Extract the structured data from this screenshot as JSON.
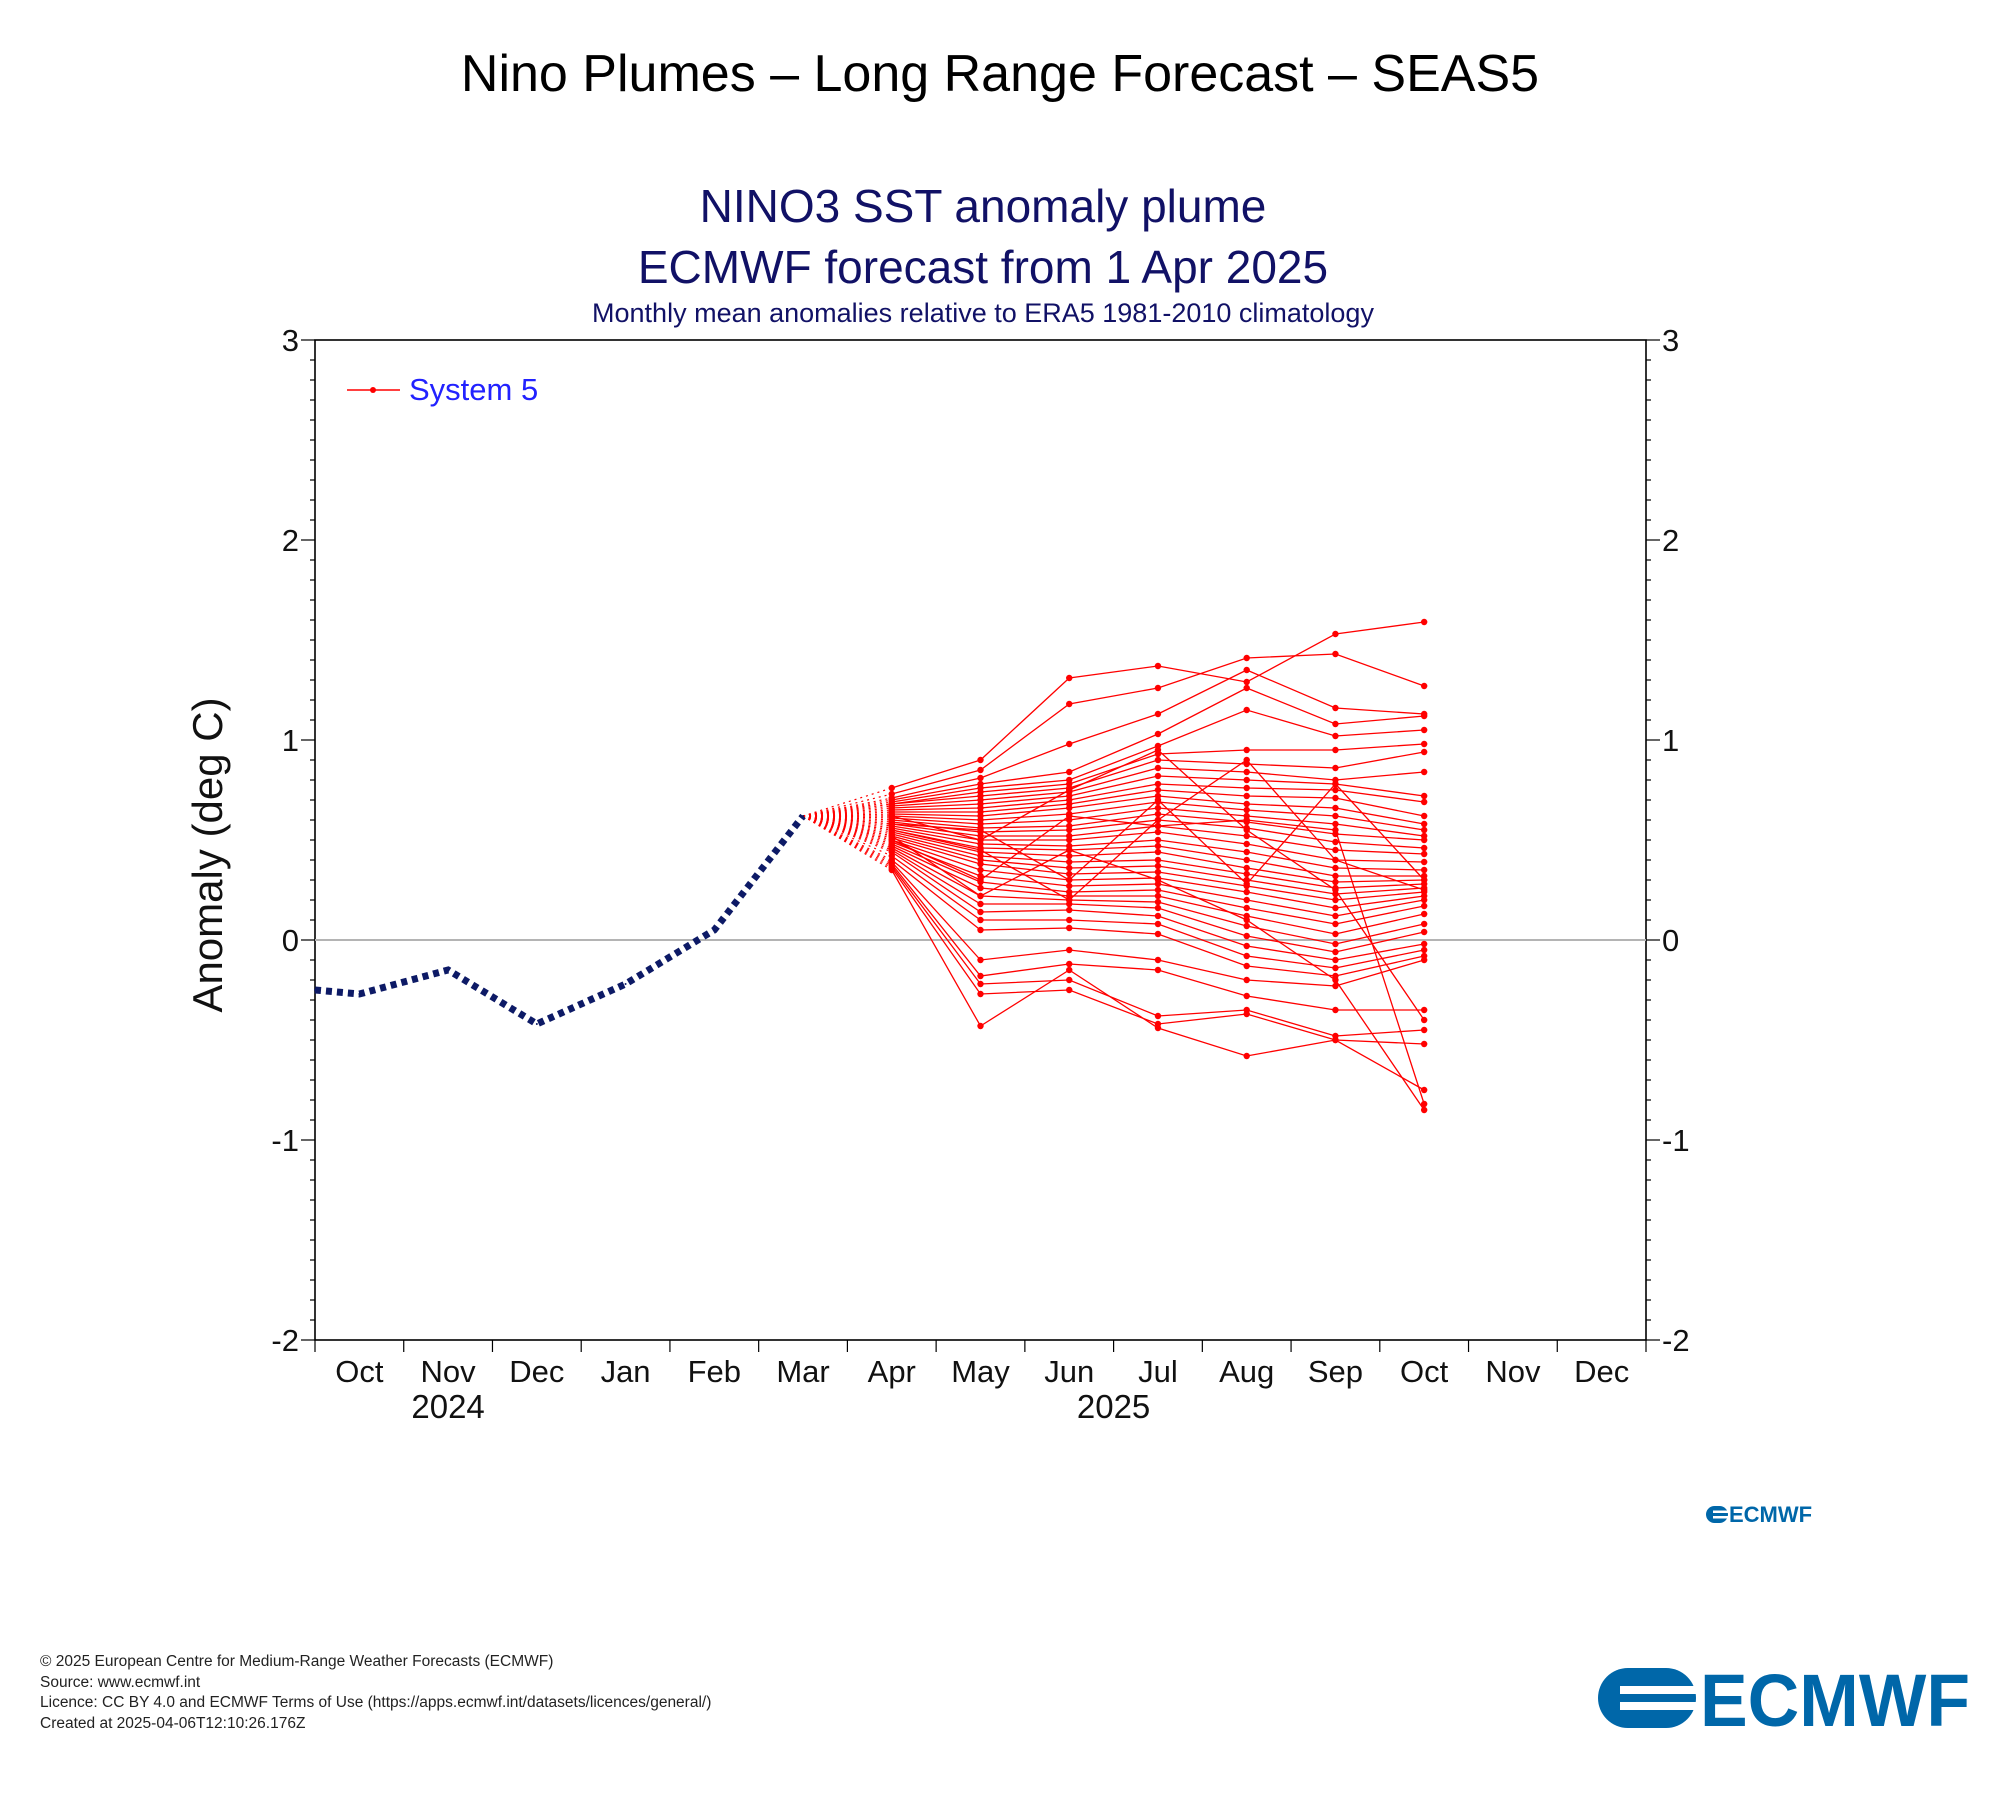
{
  "page": {
    "title": "Nino Plumes – Long Range Forecast – SEAS5",
    "footer": {
      "copyright": "© 2025 European Centre for Medium-Range Weather Forecasts (ECMWF)",
      "source": "Source: www.ecmwf.int",
      "licence": "Licence: CC BY 4.0 and ECMWF Terms of Use (https://apps.ecmwf.int/datasets/licences/general/)",
      "created": "Created at 2025-04-06T12:10:26.176Z"
    },
    "logo_text": "ECMWF",
    "small_logo_text": "ECMWF"
  },
  "colors": {
    "forecast": "#ff0000",
    "observed": "#0d1a66",
    "title": "#111166",
    "legend_text": "#2222ff",
    "logo": "#0067a9",
    "zero_line": "#b4b4b4"
  },
  "chart_data": {
    "type": "line",
    "title": "NINO3 SST anomaly plume",
    "title2": "ECMWF forecast from 1 Apr 2025",
    "subtitle": "Monthly mean anomalies relative to ERA5 1981-2010 climatology",
    "ylabel": "Anomaly (deg C)",
    "ylim": [
      -2,
      3
    ],
    "yticks": [
      -2,
      -1,
      0,
      1,
      2,
      3
    ],
    "ytick_labels": [
      "-2",
      "-1",
      "0",
      "1",
      "2",
      "3"
    ],
    "x_labels": [
      "Oct",
      "Nov",
      "Dec",
      "Jan",
      "Feb",
      "Mar",
      "Apr",
      "May",
      "Jun",
      "Jul",
      "Aug",
      "Sep",
      "Oct",
      "Nov",
      "Dec"
    ],
    "year_labels": [
      {
        "text": "2024",
        "index": 1
      },
      {
        "text": "2025",
        "index": 8.5
      }
    ],
    "legend": {
      "label": "System 5",
      "position": "top-left"
    },
    "grid": false,
    "zero_line": true,
    "observed": {
      "name": "",
      "points": [
        {
          "x": -0.5,
          "y": -0.25
        },
        {
          "x": 0,
          "y": -0.27
        },
        {
          "x": 1,
          "y": -0.15
        },
        {
          "x": 2,
          "y": -0.42
        },
        {
          "x": 3,
          "y": -0.22
        },
        {
          "x": 4,
          "y": 0.05
        },
        {
          "x": 5,
          "y": 0.62
        }
      ]
    },
    "forecast_start": {
      "x": 5,
      "y": 0.62
    },
    "forecast_x": [
      6,
      7,
      8,
      9,
      10,
      11,
      12
    ],
    "forecast_members": [
      [
        0.76,
        0.9,
        1.31,
        1.37,
        1.29,
        1.53,
        1.59
      ],
      [
        0.73,
        0.85,
        1.18,
        1.26,
        1.41,
        1.43,
        1.27
      ],
      [
        0.71,
        0.81,
        0.98,
        1.13,
        1.35,
        1.16,
        1.13
      ],
      [
        0.7,
        0.78,
        0.84,
        1.03,
        1.26,
        1.08,
        1.12
      ],
      [
        0.69,
        0.76,
        0.8,
        0.97,
        1.15,
        1.02,
        1.05
      ],
      [
        0.68,
        0.74,
        0.78,
        0.93,
        0.95,
        0.95,
        0.98
      ],
      [
        0.68,
        0.72,
        0.76,
        0.9,
        0.88,
        0.86,
        0.94
      ],
      [
        0.67,
        0.7,
        0.74,
        0.86,
        0.84,
        0.8,
        0.84
      ],
      [
        0.66,
        0.68,
        0.72,
        0.82,
        0.8,
        0.78,
        0.72
      ],
      [
        0.65,
        0.66,
        0.7,
        0.78,
        0.76,
        0.75,
        0.69
      ],
      [
        0.64,
        0.64,
        0.68,
        0.75,
        0.72,
        0.71,
        0.62
      ],
      [
        0.63,
        0.62,
        0.66,
        0.72,
        0.68,
        0.66,
        0.58
      ],
      [
        0.62,
        0.6,
        0.63,
        0.69,
        0.65,
        0.62,
        0.55
      ],
      [
        0.61,
        0.58,
        0.6,
        0.66,
        0.62,
        0.58,
        0.52
      ],
      [
        0.6,
        0.56,
        0.57,
        0.63,
        0.59,
        0.53,
        0.5
      ],
      [
        0.59,
        0.54,
        0.55,
        0.6,
        0.56,
        0.49,
        0.46
      ],
      [
        0.58,
        0.52,
        0.52,
        0.57,
        0.52,
        0.45,
        0.43
      ],
      [
        0.57,
        0.5,
        0.5,
        0.54,
        0.48,
        0.4,
        0.39
      ],
      [
        0.56,
        0.48,
        0.47,
        0.5,
        0.44,
        0.36,
        0.35
      ],
      [
        0.55,
        0.46,
        0.45,
        0.47,
        0.4,
        0.32,
        0.32
      ],
      [
        0.54,
        0.44,
        0.42,
        0.44,
        0.36,
        0.29,
        0.3
      ],
      [
        0.53,
        0.42,
        0.39,
        0.4,
        0.33,
        0.26,
        0.28
      ],
      [
        0.52,
        0.4,
        0.36,
        0.37,
        0.3,
        0.23,
        0.26
      ],
      [
        0.51,
        0.38,
        0.33,
        0.34,
        0.27,
        0.2,
        0.24
      ],
      [
        0.5,
        0.35,
        0.3,
        0.31,
        0.24,
        0.16,
        0.22
      ],
      [
        0.49,
        0.32,
        0.27,
        0.28,
        0.2,
        0.12,
        0.2
      ],
      [
        0.48,
        0.29,
        0.24,
        0.25,
        0.16,
        0.08,
        0.17
      ],
      [
        0.47,
        0.26,
        0.22,
        0.22,
        0.12,
        0.03,
        0.13
      ],
      [
        0.46,
        0.22,
        0.2,
        0.19,
        0.07,
        -0.02,
        0.08
      ],
      [
        0.45,
        0.18,
        0.18,
        0.16,
        0.02,
        -0.06,
        0.04
      ],
      [
        0.44,
        0.14,
        0.15,
        0.12,
        -0.03,
        -0.1,
        -0.02
      ],
      [
        0.42,
        0.1,
        0.1,
        0.08,
        -0.08,
        -0.14,
        -0.05
      ],
      [
        0.4,
        0.05,
        0.06,
        0.03,
        -0.13,
        -0.18,
        -0.08
      ],
      [
        0.39,
        -0.1,
        -0.05,
        -0.1,
        -0.2,
        -0.23,
        -0.1
      ],
      [
        0.38,
        -0.18,
        -0.12,
        -0.15,
        -0.28,
        -0.35,
        -0.35
      ],
      [
        0.37,
        -0.22,
        -0.2,
        -0.38,
        -0.35,
        -0.48,
        -0.45
      ],
      [
        0.36,
        -0.27,
        -0.25,
        -0.42,
        -0.37,
        -0.5,
        -0.52
      ],
      [
        0.35,
        -0.43,
        -0.15,
        -0.44,
        -0.58,
        -0.5,
        -0.75
      ],
      [
        0.5,
        0.3,
        0.62,
        0.57,
        0.6,
        0.55,
        -0.82
      ],
      [
        0.52,
        0.22,
        0.45,
        0.3,
        0.1,
        -0.2,
        -0.85
      ],
      [
        0.62,
        0.5,
        0.75,
        0.95,
        0.55,
        0.25,
        -0.4
      ],
      [
        0.58,
        0.55,
        0.3,
        0.7,
        0.28,
        0.78,
        0.3
      ],
      [
        0.55,
        0.45,
        0.2,
        0.6,
        0.9,
        0.4,
        0.25
      ]
    ]
  }
}
